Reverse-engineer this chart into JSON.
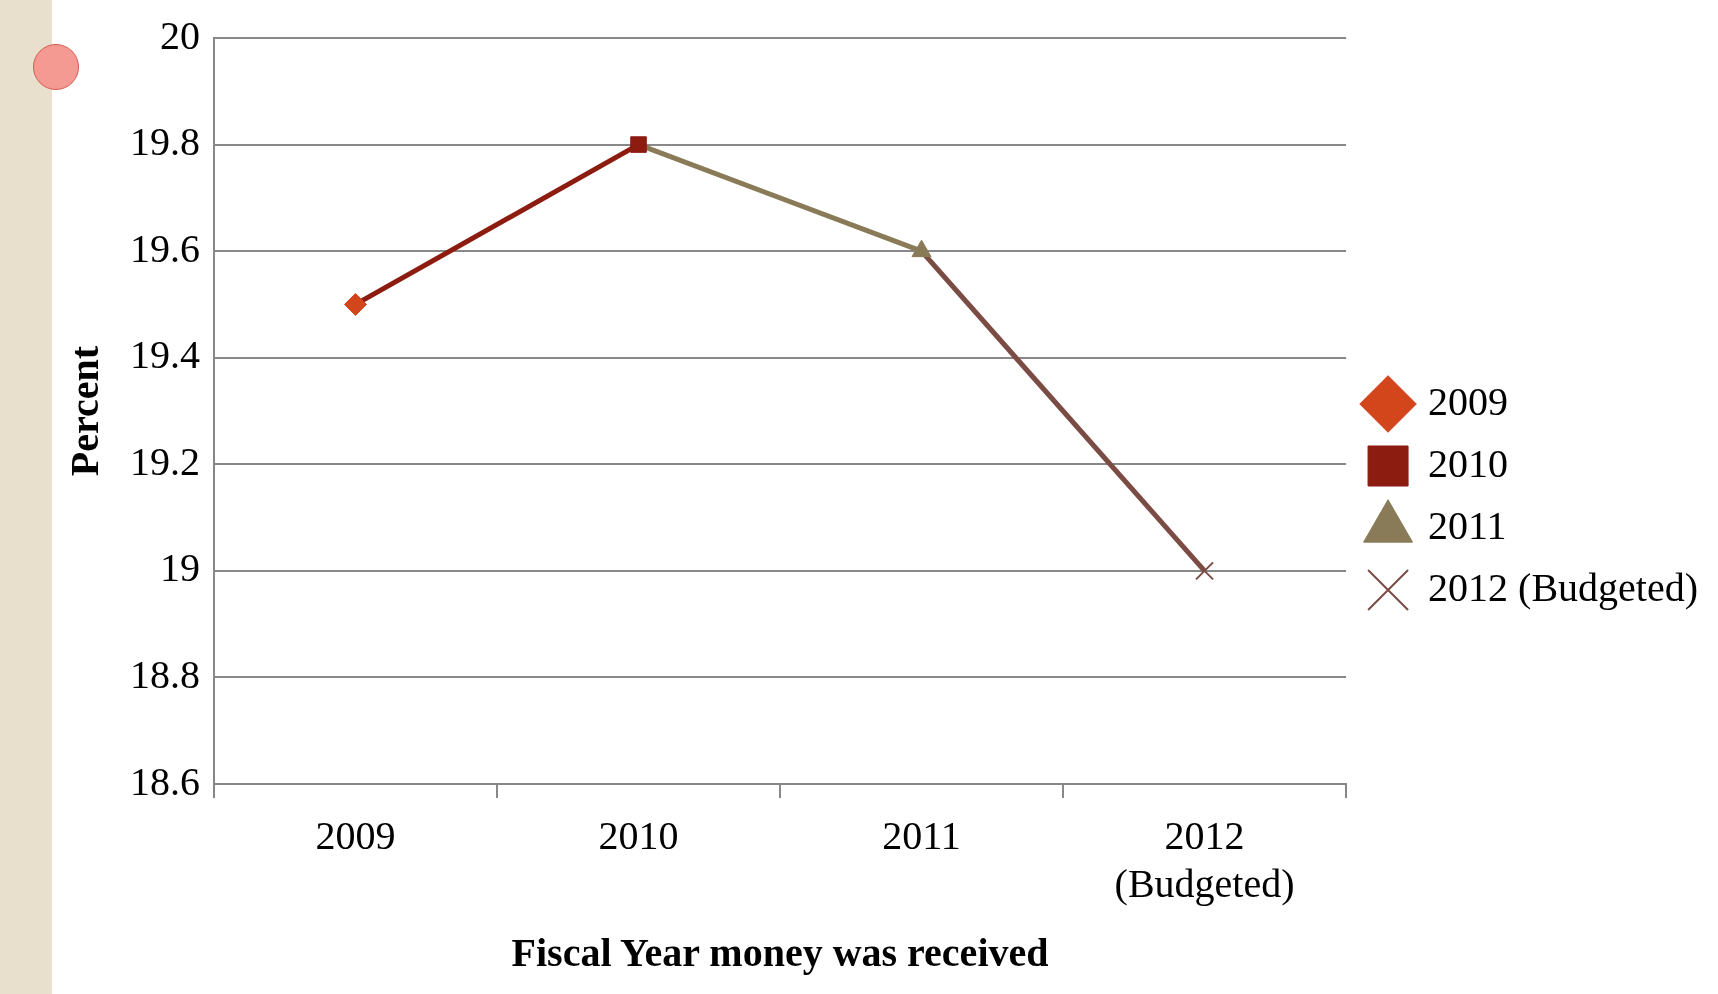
{
  "chart_data": {
    "type": "line",
    "xlabel": "Fiscal Year money was received",
    "ylabel": "Percent",
    "categories": [
      "2009",
      "2010",
      "2011",
      "2012 (Budgeted)"
    ],
    "series": [
      {
        "name": "2009",
        "color": "#d3461c",
        "marker": "diamond",
        "values": [
          19.5,
          null,
          null,
          null
        ]
      },
      {
        "name": "2010",
        "color": "#8c1c10",
        "marker": "square",
        "values": [
          19.5,
          19.8,
          null,
          null
        ]
      },
      {
        "name": "2011",
        "color": "#8a7b58",
        "marker": "triangle",
        "values": [
          null,
          19.8,
          19.6,
          null
        ]
      },
      {
        "name": "2012 (Budgeted)",
        "color": "#7a4c44",
        "marker": "cross",
        "values": [
          null,
          null,
          19.6,
          19.0
        ]
      }
    ],
    "ylim": [
      18.6,
      20
    ],
    "yticks": [
      18.6,
      18.8,
      19,
      19.2,
      19.4,
      19.6,
      19.8,
      20
    ],
    "grid": "y",
    "legend": "right"
  }
}
